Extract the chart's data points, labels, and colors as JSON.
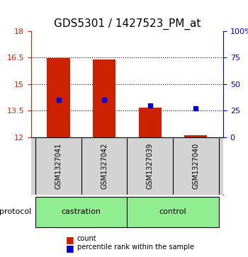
{
  "title": "GDS5301 / 1427523_PM_at",
  "samples": [
    "GSM1327041",
    "GSM1327042",
    "GSM1327039",
    "GSM1327040"
  ],
  "groups": [
    "castration",
    "castration",
    "control",
    "control"
  ],
  "group_colors": {
    "castration": "#90EE90",
    "control": "#90EE90"
  },
  "red_bar_bottoms": [
    12,
    12,
    12,
    12
  ],
  "red_bar_tops": [
    16.47,
    16.37,
    13.65,
    12.1
  ],
  "blue_marker_values": [
    14.05,
    14.05,
    13.9,
    13.65
  ],
  "blue_marker_percentiles": [
    35,
    35,
    30,
    27
  ],
  "ylim_left": [
    12,
    18
  ],
  "ylim_right": [
    0,
    100
  ],
  "yticks_left": [
    12,
    13.5,
    15,
    16.5,
    18
  ],
  "yticks_right": [
    0,
    25,
    50,
    75,
    100
  ],
  "ytick_labels_left": [
    "12",
    "13.5",
    "15",
    "16.5",
    "18"
  ],
  "ytick_labels_right": [
    "0",
    "25",
    "50",
    "75",
    "100%"
  ],
  "bar_color": "#CC2200",
  "blue_color": "#0000CC",
  "bg_color_plot": "#FFFFFF",
  "bg_color_label": "#D3D3D3",
  "legend_count_color": "#CC2200",
  "legend_percentile_color": "#0000CC",
  "grid_color": "#000000",
  "title_fontsize": 11,
  "tick_fontsize": 8,
  "bar_width": 0.5
}
